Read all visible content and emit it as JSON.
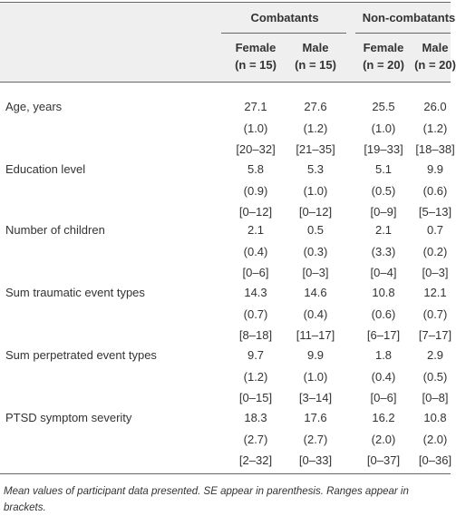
{
  "table": {
    "groups": [
      "Combatants",
      "Non-combatants"
    ],
    "subheaders": [
      {
        "sex": "Female",
        "n": "(n = 15)"
      },
      {
        "sex": "Male",
        "n": "(n = 15)"
      },
      {
        "sex": "Female",
        "n": "(n = 20)"
      },
      {
        "sex": "Male",
        "n": "(n = 20)"
      }
    ],
    "rows": [
      {
        "label": "Age, years",
        "cells": [
          [
            "27.1",
            "(1.0)",
            "[20–32]"
          ],
          [
            "27.6",
            "(1.2)",
            "[21–35]"
          ],
          [
            "25.5",
            "(1.0)",
            "[19–33]"
          ],
          [
            "26.0",
            "(1.2)",
            "[18–38]"
          ]
        ]
      },
      {
        "label": "Education level",
        "cells": [
          [
            "5.8",
            "(0.9)",
            "[0–12]"
          ],
          [
            "5.3",
            "(1.0)",
            "[0–12]"
          ],
          [
            "5.1",
            "(0.5)",
            "[0–9]"
          ],
          [
            "9.9",
            "(0.6)",
            "[5–13]"
          ]
        ]
      },
      {
        "label": "Number of children",
        "cells": [
          [
            "2.1",
            "(0.4)",
            "[0–6]"
          ],
          [
            "0.5",
            "(0.3)",
            "[0–3]"
          ],
          [
            "2.1",
            "(3.3)",
            "[0–4]"
          ],
          [
            "0.7",
            "(0.2)",
            "[0–3]"
          ]
        ]
      },
      {
        "label": "Sum traumatic event types",
        "cells": [
          [
            "14.3",
            "(0.7)",
            "[8–18]"
          ],
          [
            "14.6",
            "(0.4)",
            "[11–17]"
          ],
          [
            "10.8",
            "(0.6)",
            "[6–17]"
          ],
          [
            "12.1",
            "(0.7)",
            "[7–17]"
          ]
        ]
      },
      {
        "label": "Sum perpetrated event types",
        "cells": [
          [
            "9.7",
            "(1.2)",
            "[0–15]"
          ],
          [
            "9.9",
            "(1.0)",
            "[3–14]"
          ],
          [
            "1.8",
            "(0.4)",
            "[0–6]"
          ],
          [
            "2.9",
            "(0.5)",
            "[0–8]"
          ]
        ]
      },
      {
        "label": "PTSD symptom severity",
        "cells": [
          [
            "18.3",
            "(2.7)",
            "[2–32]"
          ],
          [
            "17.6",
            "(2.7)",
            "[0–33]"
          ],
          [
            "16.2",
            "(2.0)",
            "[0–37]"
          ],
          [
            "10.8",
            "(2.0)",
            "[0–36]"
          ]
        ]
      }
    ],
    "footnote": "Mean values of participant data presented. SE appear in parenthesis. Ranges appear in brackets."
  }
}
